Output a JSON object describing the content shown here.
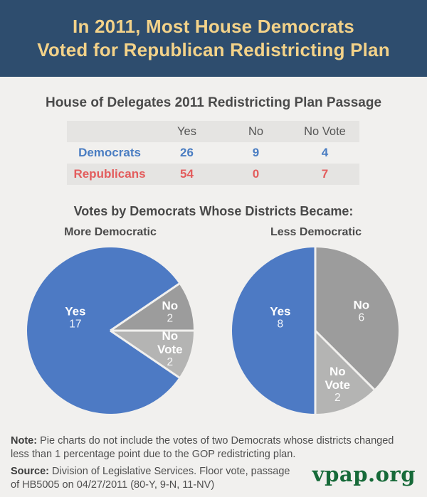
{
  "header": {
    "line1": "In 2011, Most House Democrats",
    "line2": "Voted for Republican Redistricting Plan"
  },
  "section": {
    "pies_heading": "Votes by Democrats Whose Districts Became:"
  },
  "chart_data": [
    {
      "type": "table",
      "title": "House of Delegates 2011 Redistricting Plan Passage",
      "columns": [
        "Yes",
        "No",
        "No Vote"
      ],
      "rows": [
        [
          "Democrats",
          "26",
          "9",
          "4"
        ],
        [
          "Republicans",
          "54",
          "0",
          "7"
        ]
      ],
      "row_colors": [
        "#4a7dc2",
        "#e35d5d"
      ]
    },
    {
      "type": "pie",
      "title": "More Democratic",
      "start_angle_deg": 55.71,
      "slices": [
        {
          "label": "No",
          "display": "No",
          "value": 2,
          "color": "#9c9c9c"
        },
        {
          "label": "No Vote",
          "display": "No Vote",
          "value": 2,
          "color": "#b4b4b3"
        },
        {
          "label": "Yes",
          "display": "Yes",
          "value": 17,
          "color": "#4d7ac4"
        }
      ]
    },
    {
      "type": "pie",
      "title": "Less Democratic",
      "start_angle_deg": 0,
      "slices": [
        {
          "label": "No",
          "display": "No",
          "value": 6,
          "color": "#9c9c9c"
        },
        {
          "label": "No Vote",
          "display": "No\nVote",
          "value": 2,
          "color": "#b4b4b3"
        },
        {
          "label": "Yes",
          "display": "Yes",
          "value": 8,
          "color": "#4d7ac4"
        }
      ]
    }
  ],
  "colors": {
    "header_bg": "#2e4d6e",
    "header_text": "#f3d289",
    "page_bg": "#f1f0ee",
    "table_stripe_bg": "#e5e4e2",
    "democrat_blue": "#4a7dc2",
    "republican_red": "#e35d5d",
    "pie_yes_blue": "#4d7ac4",
    "pie_no_gray": "#9c9c9c",
    "pie_no_vote_gray": "#b4b4b3",
    "logo_green": "#176a39"
  },
  "footer": {
    "note_label": "Note:",
    "note_text": " Pie charts do not include the votes of two Democrats whose districts changed less than 1 percentage point due to the GOP redistricting plan.",
    "source_label": "Source:",
    "source_text": " Division of Legislative Services. Floor vote, passage of HB5005 on 04/27/2011 (80-Y, 9-N, 11-NV)",
    "logo": "vpap.org"
  }
}
